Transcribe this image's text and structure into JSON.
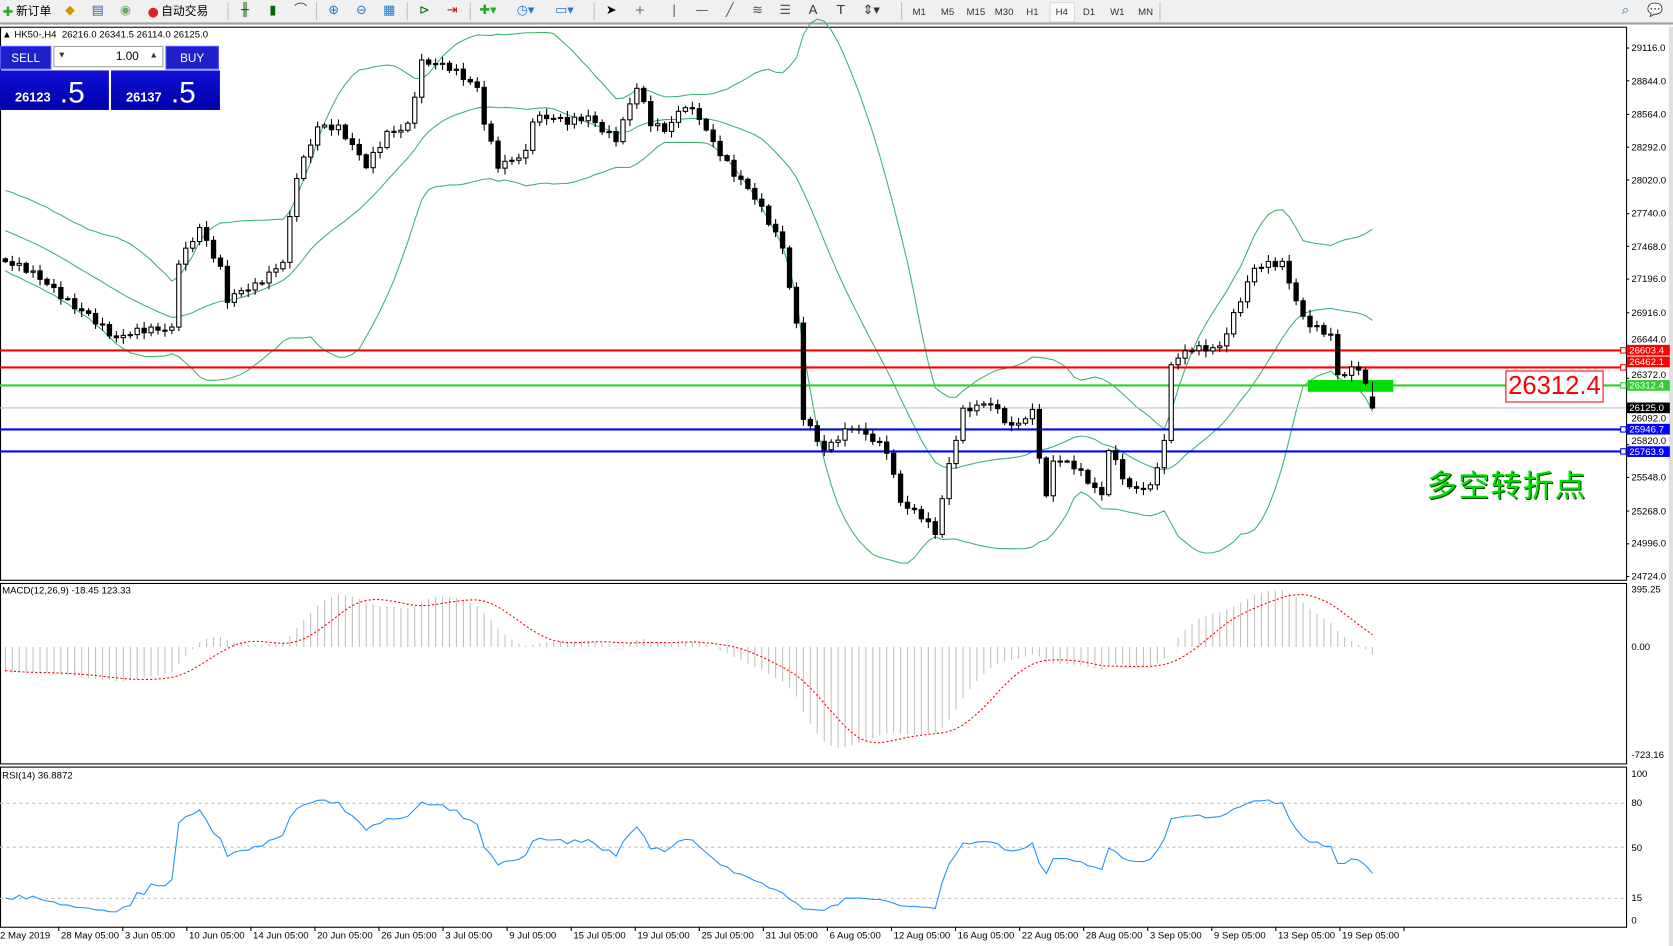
{
  "toolbar": {
    "new_order_label": "新订单",
    "auto_trading_label": "自动交易",
    "icons": [
      "new-order-icon",
      "market-watch-icon",
      "navigator-icon",
      "signals-icon",
      "auto-trading-icon",
      "bar-chart-icon",
      "candlestick-icon",
      "line-chart-icon",
      "zoom-in-icon",
      "zoom-out-icon",
      "tile-windows-icon",
      "chart-shift-icon",
      "autoscroll-icon",
      "indicators-icon",
      "periods-icon",
      "templates-icon",
      "cursor-icon",
      "crosshair-icon",
      "vertical-line-icon",
      "horizontal-line-icon",
      "trendline-icon",
      "fibonacci-icon",
      "fibo-fan-icon",
      "text-icon",
      "text-label-icon",
      "arrows-icon"
    ],
    "timeframes": [
      "M1",
      "M5",
      "M15",
      "M30",
      "H1",
      "H4",
      "D1",
      "W1",
      "MN"
    ],
    "active_timeframe": "H4"
  },
  "chart": {
    "symbol_info": "HK50-,H4",
    "ohlc_info": "26216.0 26341.5 26114.0 26125.0",
    "price_ticks": [
      "29116.0",
      "28844.0",
      "28564.0",
      "28292.0",
      "28020.0",
      "27740.0",
      "27468.0",
      "27196.0",
      "26916.0",
      "26644.0",
      "26372.0",
      "26092.0",
      "25820.0",
      "25548.0",
      "25268.0",
      "24996.0",
      "24724.0"
    ],
    "date_labels": [
      "2 May 2019",
      "28 May 05:00",
      "3 Jun 05:00",
      "10 Jun 05:00",
      "14 Jun 05:00",
      "20 Jun 05:00",
      "26 Jun 05:00",
      "3 Jul 05:00",
      "9 Jul 05:00",
      "15 Jul 05:00",
      "19 Jul 05:00",
      "25 Jul 05:00",
      "31 Jul 05:00",
      "6 Aug 05:00",
      "12 Aug 05:00",
      "16 Aug 05:00",
      "22 Aug 05:00",
      "28 Aug 05:00",
      "3 Sep 05:00",
      "9 Sep 05:00",
      "13 Sep 05:00",
      "19 Sep 05:00"
    ],
    "price_path": [
      [
        -40,
        28300
      ],
      [
        -20,
        27900
      ],
      [
        0,
        27341
      ],
      [
        5,
        27164
      ],
      [
        12,
        26942
      ],
      [
        16,
        26676
      ],
      [
        19,
        26720
      ],
      [
        24,
        26809
      ],
      [
        25,
        27386
      ],
      [
        28,
        27652
      ],
      [
        31,
        27253
      ],
      [
        32,
        26986
      ],
      [
        36,
        27120
      ],
      [
        40,
        27386
      ],
      [
        42,
        28096
      ],
      [
        45,
        28451
      ],
      [
        48,
        28406
      ],
      [
        52,
        28140
      ],
      [
        55,
        28451
      ],
      [
        58,
        28495
      ],
      [
        60,
        28983
      ],
      [
        64,
        28912
      ],
      [
        68,
        28805
      ],
      [
        69,
        28539
      ],
      [
        71,
        28185
      ],
      [
        75,
        28229
      ],
      [
        76,
        28495
      ],
      [
        81,
        28495
      ],
      [
        84,
        28584
      ],
      [
        88,
        28380
      ],
      [
        91,
        28761
      ],
      [
        93,
        28451
      ],
      [
        95,
        28406
      ],
      [
        98,
        28672
      ],
      [
        100,
        28584
      ],
      [
        102,
        28362
      ],
      [
        105,
        28052
      ],
      [
        108,
        27830
      ],
      [
        112,
        27475
      ],
      [
        114,
        26853
      ],
      [
        115,
        26099
      ],
      [
        118,
        25789
      ],
      [
        122,
        25922
      ],
      [
        127,
        25789
      ],
      [
        129,
        25389
      ],
      [
        132,
        25256
      ],
      [
        134,
        25079
      ],
      [
        136,
        25611
      ],
      [
        138,
        26055
      ],
      [
        142,
        26188
      ],
      [
        145,
        26011
      ],
      [
        148,
        26099
      ],
      [
        150,
        25345
      ],
      [
        151,
        25655
      ],
      [
        154,
        25611
      ],
      [
        158,
        25434
      ],
      [
        159,
        25833
      ],
      [
        162,
        25478
      ],
      [
        165,
        25434
      ],
      [
        167,
        25789
      ],
      [
        168,
        26454
      ],
      [
        171,
        26631
      ],
      [
        175,
        26676
      ],
      [
        178,
        27031
      ],
      [
        180,
        27253
      ],
      [
        184,
        27297
      ],
      [
        187,
        26897
      ],
      [
        191,
        26764
      ],
      [
        192,
        26409
      ],
      [
        195,
        26427
      ],
      [
        197,
        26125
      ]
    ],
    "last_bar": {
      "open": 26216.0,
      "high": 26341.5,
      "low": 26114.0,
      "close": 26125.0
    },
    "bollinger": {
      "period": 20,
      "deviation": 2,
      "color": "#3cb371"
    },
    "levels": [
      {
        "price": "26603.4",
        "color": "#ff0000",
        "kind": "resistance"
      },
      {
        "price": "26462.1",
        "color": "#ff0000",
        "kind": "resistance"
      },
      {
        "price": "26312.4",
        "color": "#33cc33",
        "kind": "pivot"
      },
      {
        "price": "26125.0",
        "color": "#000000",
        "kind": "bid"
      },
      {
        "price": "25946.7",
        "color": "#0000ff",
        "kind": "support"
      },
      {
        "price": "25763.9",
        "color": "#0000ff",
        "kind": "support"
      }
    ],
    "pivot_callout": "26312.4",
    "annotation": "多空转折点",
    "annotation_color": "#00dd00"
  },
  "trade_panel": {
    "sell_label": "SELL",
    "buy_label": "BUY",
    "lot": "1.00",
    "sell_price_main": "26123",
    "sell_price_big": ".5",
    "buy_price_main": "26137",
    "buy_price_big": ".5"
  },
  "macd": {
    "label": "MACD(12,26,9) -18.45 123.33",
    "ticks": [
      "395.25",
      "0.00",
      "-723.16"
    ],
    "histogram_color": "#c0c0c0",
    "signal_color": "#ff0000"
  },
  "rsi": {
    "label": "RSI(14) 36.8872",
    "ticks": [
      "100",
      "80",
      "50",
      "15",
      "0"
    ],
    "color": "#1e90ff"
  }
}
